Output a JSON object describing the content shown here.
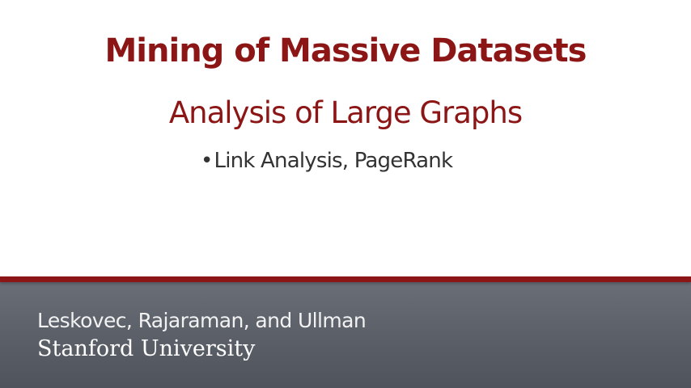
{
  "slide": {
    "title": "Mining of Massive Datasets",
    "subtitle": "Analysis of Large Graphs",
    "bullets": [
      {
        "marker": "•",
        "text": "Link Analysis, PageRank"
      }
    ]
  },
  "footer": {
    "authors": "Leskovec, Rajaraman, and Ullman",
    "institution": "Stanford University"
  },
  "colors": {
    "accent": "#8c1515",
    "footer_background": "#5b5f68",
    "body_text": "#333333"
  }
}
